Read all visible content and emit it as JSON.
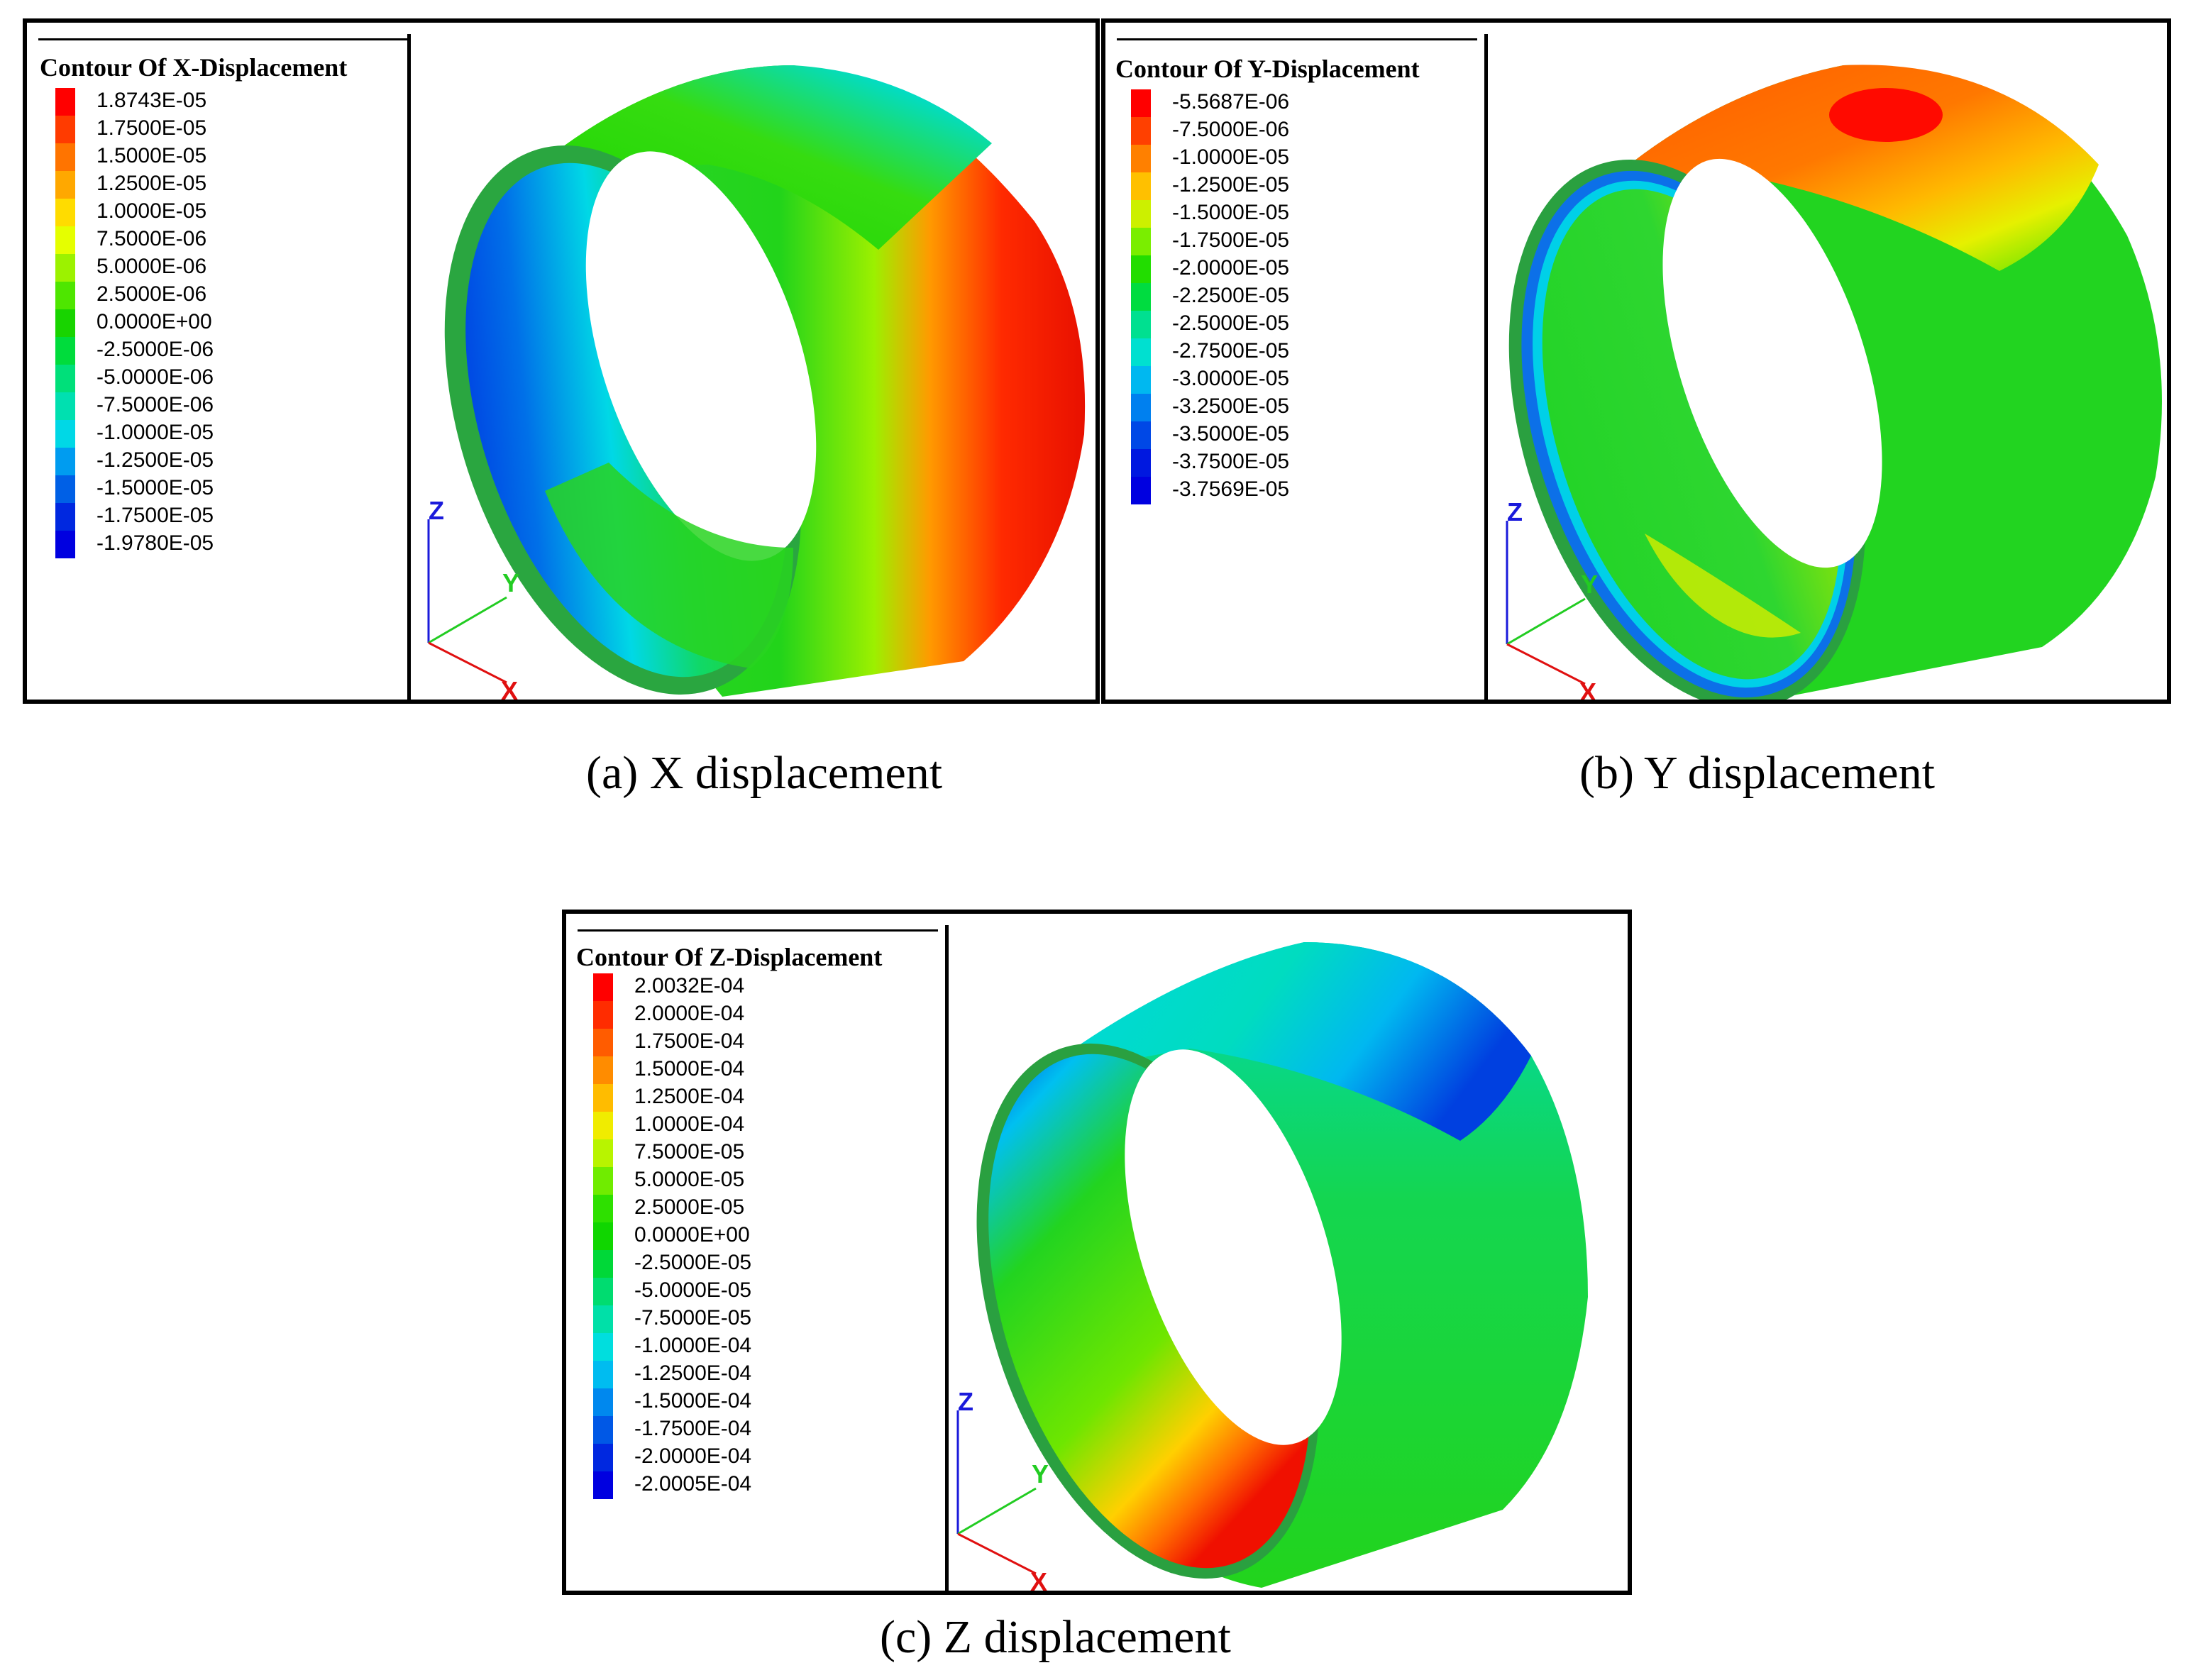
{
  "panels": [
    {
      "id": "a",
      "legend_title": "Contour Of X-Displacement",
      "caption": "(a) X displacement",
      "legend_labels": [
        "1.8743E-05",
        "1.7500E-05",
        "1.5000E-05",
        "1.2500E-05",
        "1.0000E-05",
        "7.5000E-06",
        "5.0000E-06",
        "2.5000E-06",
        "0.0000E+00",
        "-2.5000E-06",
        "-5.0000E-06",
        "-7.5000E-06",
        "-1.0000E-05",
        "-1.2500E-05",
        "-1.5000E-05",
        "-1.7500E-05",
        "-1.9780E-05"
      ],
      "axis_labels": {
        "z": "Z",
        "y": "Y",
        "x": "X"
      }
    },
    {
      "id": "b",
      "legend_title": "Contour Of Y-Displacement",
      "caption": "(b) Y displacement",
      "legend_labels": [
        "-5.5687E-06",
        "-7.5000E-06",
        "-1.0000E-05",
        "-1.2500E-05",
        "-1.5000E-05",
        "-1.7500E-05",
        "-2.0000E-05",
        "-2.2500E-05",
        "-2.5000E-05",
        "-2.7500E-05",
        "-3.0000E-05",
        "-3.2500E-05",
        "-3.5000E-05",
        "-3.7500E-05",
        "-3.7569E-05"
      ],
      "axis_labels": {
        "z": "Z",
        "y": "Y",
        "x": "X"
      }
    },
    {
      "id": "c",
      "legend_title": "Contour Of Z-Displacement",
      "caption": "(c) Z displacement",
      "legend_labels": [
        "2.0032E-04",
        "2.0000E-04",
        "1.7500E-04",
        "1.5000E-04",
        "1.2500E-04",
        "1.0000E-04",
        "7.5000E-05",
        "5.0000E-05",
        "2.5000E-05",
        "0.0000E+00",
        "-2.5000E-05",
        "-5.0000E-05",
        "-7.5000E-05",
        "-1.0000E-04",
        "-1.2500E-04",
        "-1.5000E-04",
        "-1.7500E-04",
        "-2.0000E-04",
        "-2.0005E-04"
      ],
      "axis_labels": {
        "z": "Z",
        "y": "Y",
        "x": "X"
      }
    }
  ],
  "colors": {
    "scale_17": [
      "#ff0000",
      "#ff3b00",
      "#ff7400",
      "#ffa800",
      "#ffdc00",
      "#e5ff00",
      "#9cf200",
      "#4ee600",
      "#18d400",
      "#00dc3c",
      "#00e07a",
      "#00e0b0",
      "#00d8e6",
      "#009cf0",
      "#0060e6",
      "#0028e0",
      "#0000e0"
    ],
    "scale_15": [
      "#ff0000",
      "#ff4000",
      "#ff8000",
      "#ffc000",
      "#ccf000",
      "#7aee00",
      "#22dd00",
      "#00dc40",
      "#00e090",
      "#00e0d0",
      "#00b8f0",
      "#0080ef",
      "#0048e6",
      "#0018e0",
      "#0000e0"
    ],
    "scale_19": [
      "#ff0000",
      "#ff2c00",
      "#ff5c00",
      "#ff8c00",
      "#ffbc00",
      "#f0ec00",
      "#b8f400",
      "#70ec00",
      "#2ee000",
      "#10d600",
      "#00d838",
      "#00dc70",
      "#00e0a8",
      "#00dede",
      "#00bcf0",
      "#0088ee",
      "#0058e6",
      "#0028e0",
      "#0000e0"
    ],
    "axis_z": "#1a1adb",
    "axis_y": "#22cc22",
    "axis_x": "#e01010"
  }
}
